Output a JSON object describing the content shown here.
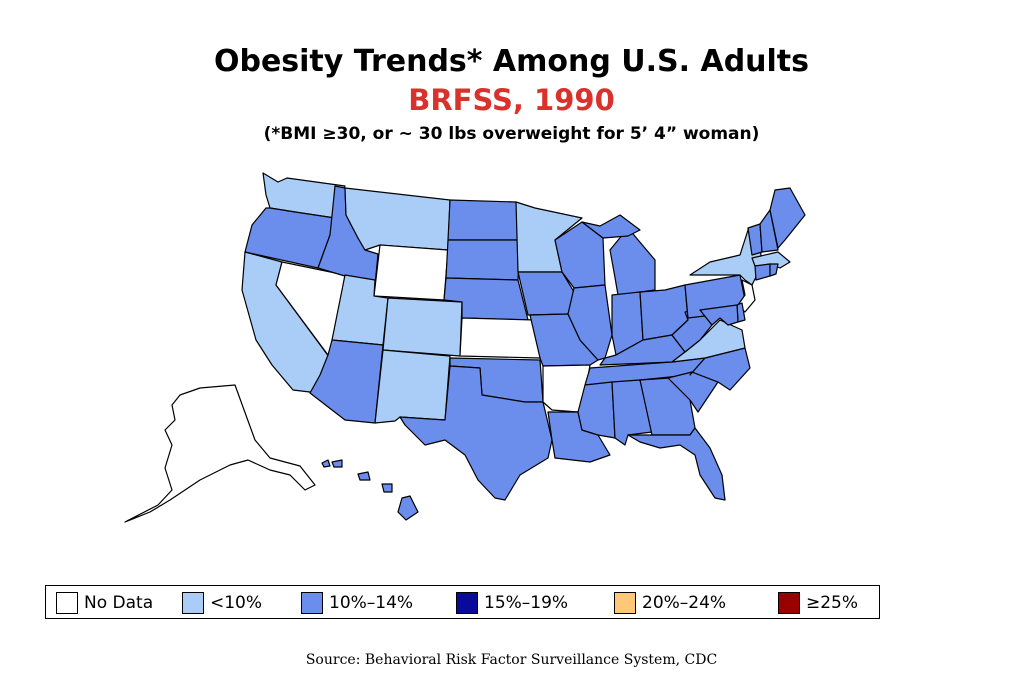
{
  "header": {
    "title": "Obesity Trends* Among U.S. Adults",
    "subtitle": "BRFSS, 1990",
    "note": "(*BMI ≥30, or ~ 30 lbs overweight for 5’ 4” woman)"
  },
  "colors": {
    "no_data": "#ffffff",
    "lt10": "#a9cdf6",
    "10to14": "#6b8eec",
    "15to19": "#0a0a9a",
    "20to24": "#ffc878",
    "ge25": "#990000",
    "title_red": "#d9312b"
  },
  "legend": [
    {
      "key": "no_data",
      "label": "No Data",
      "color": "#ffffff"
    },
    {
      "key": "lt10",
      "label": "<10%",
      "color": "#a9cdf6"
    },
    {
      "key": "10to14",
      "label": "10%–14%",
      "color": "#6b8eec"
    },
    {
      "key": "15to19",
      "label": "15%–19%",
      "color": "#0a0a9a"
    },
    {
      "key": "20to24",
      "label": "20%–24%",
      "color": "#ffc878"
    },
    {
      "key": "ge25",
      "label": "≥25%",
      "color": "#990000"
    }
  ],
  "states": {
    "WA": "lt10",
    "OR": "10to14",
    "CA": "lt10",
    "NV": "no_data",
    "ID": "10to14",
    "MT": "lt10",
    "WY": "no_data",
    "UT": "lt10",
    "CO": "lt10",
    "AZ": "10to14",
    "NM": "lt10",
    "ND": "10to14",
    "SD": "10to14",
    "NE": "10to14",
    "KS": "no_data",
    "OK": "10to14",
    "TX": "10to14",
    "MN": "lt10",
    "IA": "10to14",
    "MO": "10to14",
    "AR": "no_data",
    "LA": "10to14",
    "WI": "10to14",
    "IL": "10to14",
    "MI": "10to14",
    "IN": "10to14",
    "OH": "10to14",
    "KY": "10to14",
    "TN": "10to14",
    "MS": "10to14",
    "AL": "10to14",
    "GA": "10to14",
    "FL": "10to14",
    "SC": "10to14",
    "NC": "10to14",
    "VA": "lt10",
    "WV": "10to14",
    "PA": "10to14",
    "NY": "lt10",
    "VT": "10to14",
    "NH": "10to14",
    "ME": "10to14",
    "MA": "lt10",
    "RI": "10to14",
    "CT": "10to14",
    "NJ": "no_data",
    "DE": "10to14",
    "MD": "10to14",
    "AK": "no_data",
    "HI": "10to14"
  },
  "source": "Source: Behavioral Risk Factor Surveillance System, CDC"
}
